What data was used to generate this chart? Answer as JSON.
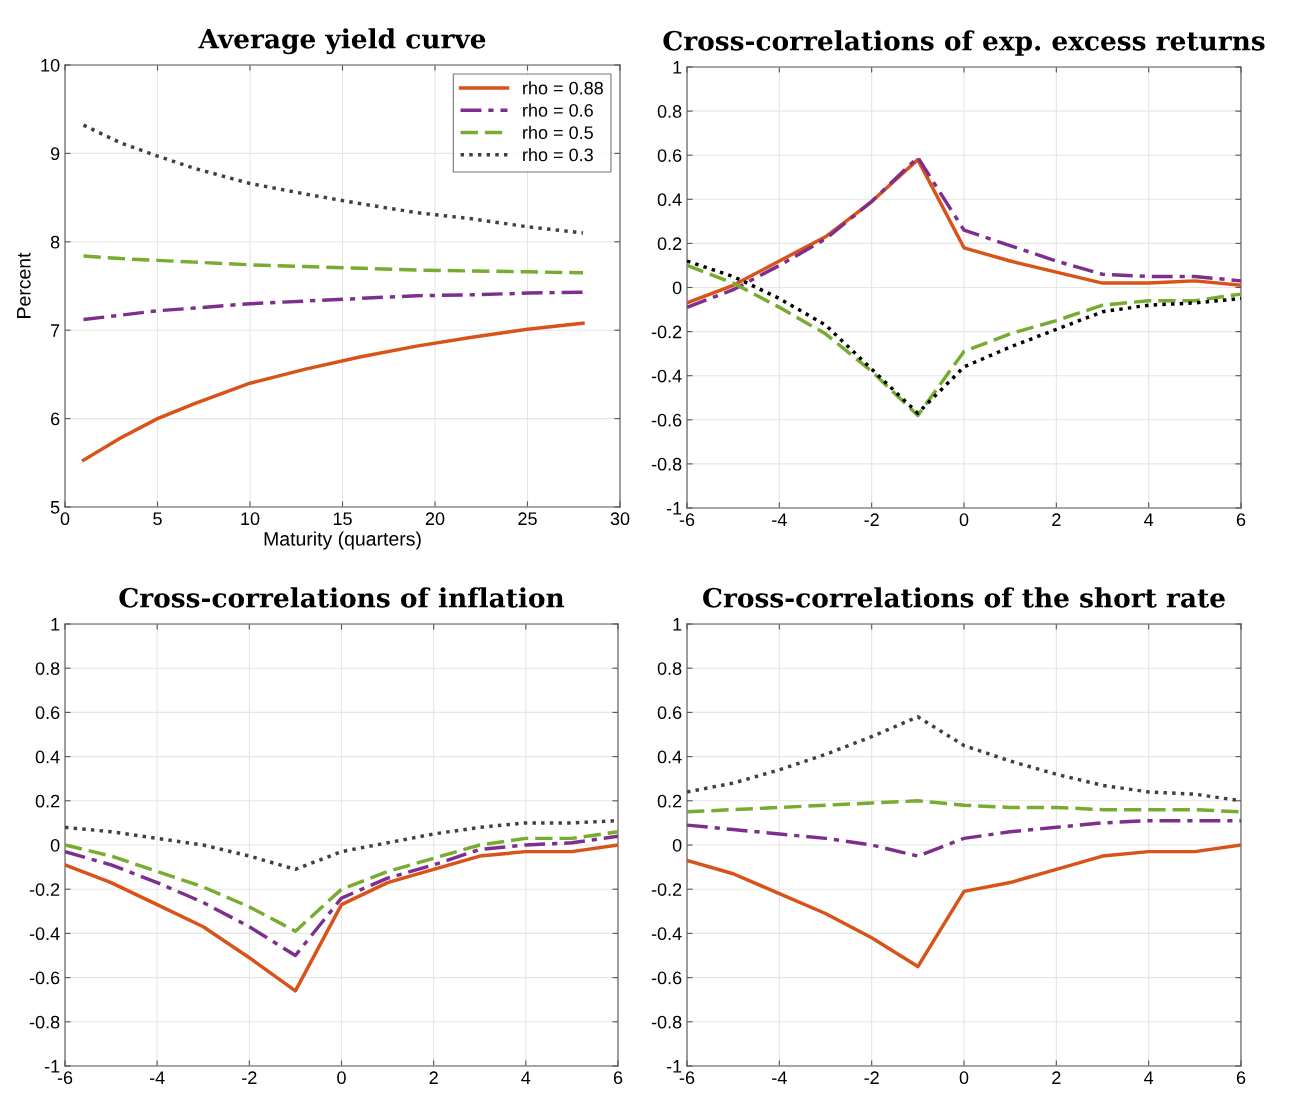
{
  "chart_data": [
    {
      "type": "line",
      "title": "Average yield curve",
      "xlabel": "Maturity (quarters)",
      "ylabel": "Percent",
      "x": [
        1,
        3,
        5,
        7,
        10,
        13,
        16,
        19,
        22,
        25,
        28
      ],
      "xlim": [
        0,
        30
      ],
      "xticks": [
        0,
        5,
        10,
        15,
        20,
        25,
        30
      ],
      "ylim": [
        5,
        10
      ],
      "yticks": [
        5,
        6,
        7,
        8,
        9,
        10
      ],
      "grid": true,
      "legend": "top right",
      "series": [
        {
          "name": "rho = 0.88",
          "color": "#d95319",
          "line_style": "solid",
          "values": [
            5.53,
            5.78,
            6.0,
            6.17,
            6.4,
            6.56,
            6.7,
            6.82,
            6.92,
            7.01,
            7.08
          ]
        },
        {
          "name": "rho = 0.6",
          "color": "#7e2f8e",
          "line_style": "dashdot",
          "values": [
            7.12,
            7.17,
            7.22,
            7.25,
            7.3,
            7.33,
            7.36,
            7.39,
            7.4,
            7.42,
            7.43
          ]
        },
        {
          "name": "rho = 0.5",
          "color": "#77ac30",
          "line_style": "dashed",
          "values": [
            7.84,
            7.81,
            7.79,
            7.77,
            7.74,
            7.72,
            7.7,
            7.68,
            7.67,
            7.66,
            7.65
          ]
        },
        {
          "name": "rho = 0.3",
          "color": "#404040",
          "line_style": "dotted",
          "values": [
            9.32,
            9.12,
            8.97,
            8.83,
            8.66,
            8.54,
            8.43,
            8.33,
            8.26,
            8.17,
            8.1
          ]
        }
      ]
    },
    {
      "type": "line",
      "title": "Cross-correlations of exp. excess returns",
      "x": [
        -6,
        -5,
        -4,
        -3,
        -2,
        -1,
        0,
        1,
        2,
        3,
        4,
        5,
        6
      ],
      "xlim": [
        -6,
        6
      ],
      "xticks": [
        -6,
        -4,
        -2,
        0,
        2,
        4,
        6
      ],
      "ylim": [
        -1,
        1
      ],
      "yticks": [
        -1,
        -0.8,
        -0.6,
        -0.4,
        -0.2,
        0,
        0.2,
        0.4,
        0.6,
        0.8,
        1
      ],
      "grid": true,
      "series": [
        {
          "color": "#d95319",
          "line_style": "solid",
          "values": [
            -0.07,
            0.01,
            0.12,
            0.23,
            0.39,
            0.58,
            0.18,
            0.12,
            0.07,
            0.02,
            0.02,
            0.03,
            0.01
          ]
        },
        {
          "color": "#7e2f8e",
          "line_style": "dashdot",
          "values": [
            -0.09,
            -0.01,
            0.1,
            0.22,
            0.39,
            0.59,
            0.26,
            0.19,
            0.12,
            0.06,
            0.05,
            0.05,
            0.03
          ]
        },
        {
          "color": "#77ac30",
          "line_style": "dashed",
          "values": [
            0.1,
            0.02,
            -0.09,
            -0.21,
            -0.38,
            -0.58,
            -0.29,
            -0.21,
            -0.15,
            -0.08,
            -0.06,
            -0.06,
            -0.03
          ]
        },
        {
          "color": "#000000",
          "line_style": "dotted",
          "values": [
            0.12,
            0.05,
            -0.05,
            -0.17,
            -0.37,
            -0.57,
            -0.36,
            -0.27,
            -0.19,
            -0.11,
            -0.08,
            -0.07,
            -0.05
          ]
        }
      ]
    },
    {
      "type": "line",
      "title": "Cross-correlations of inflation",
      "x": [
        -6,
        -5,
        -4,
        -3,
        -2,
        -1,
        0,
        1,
        2,
        3,
        4,
        5,
        6
      ],
      "xlim": [
        -6,
        6
      ],
      "xticks": [
        -6,
        -4,
        -2,
        0,
        2,
        4,
        6
      ],
      "ylim": [
        -1,
        1
      ],
      "yticks": [
        -1,
        -0.8,
        -0.6,
        -0.4,
        -0.2,
        0,
        0.2,
        0.4,
        0.6,
        0.8,
        1
      ],
      "grid": true,
      "series": [
        {
          "color": "#d95319",
          "line_style": "solid",
          "values": [
            -0.09,
            -0.17,
            -0.27,
            -0.37,
            -0.51,
            -0.66,
            -0.27,
            -0.17,
            -0.11,
            -0.05,
            -0.03,
            -0.03,
            0.0
          ]
        },
        {
          "color": "#7e2f8e",
          "line_style": "dashdot",
          "values": [
            -0.03,
            -0.09,
            -0.17,
            -0.26,
            -0.37,
            -0.5,
            -0.24,
            -0.15,
            -0.09,
            -0.02,
            0.0,
            0.01,
            0.04
          ]
        },
        {
          "color": "#77ac30",
          "line_style": "dashed",
          "values": [
            0.0,
            -0.05,
            -0.12,
            -0.19,
            -0.28,
            -0.39,
            -0.2,
            -0.12,
            -0.06,
            0.0,
            0.03,
            0.03,
            0.06
          ]
        },
        {
          "color": "#404040",
          "line_style": "dotted",
          "values": [
            0.08,
            0.06,
            0.03,
            0.0,
            -0.05,
            -0.11,
            -0.03,
            0.01,
            0.05,
            0.08,
            0.1,
            0.1,
            0.11
          ]
        }
      ]
    },
    {
      "type": "line",
      "title": "Cross-correlations of the short rate",
      "x": [
        -6,
        -5,
        -4,
        -3,
        -2,
        -1,
        0,
        1,
        2,
        3,
        4,
        5,
        6
      ],
      "xlim": [
        -6,
        6
      ],
      "xticks": [
        -6,
        -4,
        -2,
        0,
        2,
        4,
        6
      ],
      "ylim": [
        -1,
        1
      ],
      "yticks": [
        -1,
        -0.8,
        -0.6,
        -0.4,
        -0.2,
        0,
        0.2,
        0.4,
        0.6,
        0.8,
        1
      ],
      "grid": true,
      "series": [
        {
          "color": "#d95319",
          "line_style": "solid",
          "values": [
            -0.07,
            -0.13,
            -0.22,
            -0.31,
            -0.42,
            -0.55,
            -0.21,
            -0.17,
            -0.11,
            -0.05,
            -0.03,
            -0.03,
            0.0
          ]
        },
        {
          "color": "#7e2f8e",
          "line_style": "dashdot",
          "values": [
            0.09,
            0.07,
            0.05,
            0.03,
            0.0,
            -0.05,
            0.03,
            0.06,
            0.08,
            0.1,
            0.11,
            0.11,
            0.11
          ]
        },
        {
          "color": "#77ac30",
          "line_style": "dashed",
          "values": [
            0.15,
            0.16,
            0.17,
            0.18,
            0.19,
            0.2,
            0.18,
            0.17,
            0.17,
            0.16,
            0.16,
            0.16,
            0.15
          ]
        },
        {
          "color": "#404040",
          "line_style": "dotted",
          "values": [
            0.24,
            0.28,
            0.34,
            0.41,
            0.49,
            0.58,
            0.45,
            0.38,
            0.32,
            0.27,
            0.24,
            0.23,
            0.2
          ]
        }
      ]
    }
  ]
}
